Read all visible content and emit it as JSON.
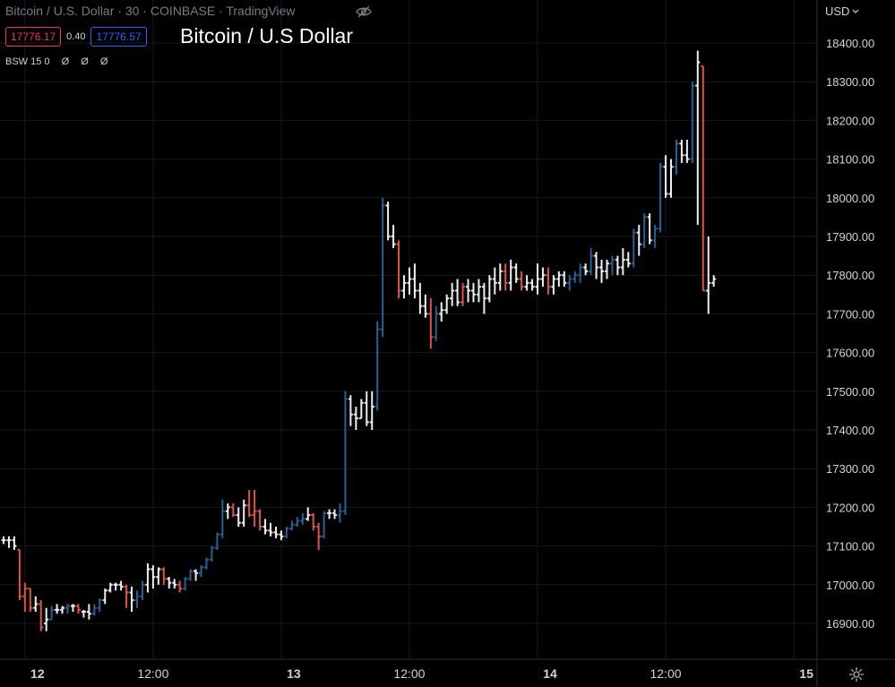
{
  "header": {
    "symbol_line": "Bitcoin / U.S. Dollar · 30 · COINBASE · TradingView",
    "bid": "17776.17",
    "spread": "0.40",
    "ask": "17776.57",
    "big_title": "Bitcoin / U.S Dollar",
    "indicator_name": "BSW 15 0",
    "indicator_values": [
      "Ø",
      "Ø",
      "Ø"
    ],
    "currency": "USD",
    "icons": {
      "visibility": "eye-off-icon",
      "dropdown": "chevron-down-icon",
      "settings": "gear-icon"
    }
  },
  "colors": {
    "background": "#000000",
    "up_bar": "#2a5f93",
    "down_bar": "#e0524a",
    "neutral_bar": "#eeeeee",
    "grid": "#161a22",
    "axis_text": "#d1d4dc"
  },
  "chart_data": {
    "type": "ohlc",
    "interval": "30",
    "ylim": [
      16820,
      18500
    ],
    "y_ticks": [
      16900,
      17000,
      17100,
      17200,
      17300,
      17400,
      17500,
      17600,
      17700,
      17800,
      17900,
      18000,
      18100,
      18200,
      18300,
      18400
    ],
    "y_tick_labels": [
      "16900.00",
      "17000.00",
      "17100.00",
      "17200.00",
      "17300.00",
      "17400.00",
      "17500.00",
      "17600.00",
      "17700.00",
      "17800.00",
      "17900.00",
      "18000.00",
      "18100.00",
      "18200.00",
      "18300.00",
      "18400.00"
    ],
    "x_ticks": [
      {
        "label": "12",
        "bar": 4
      },
      {
        "label": "12:00",
        "bar": 28
      },
      {
        "label": "13",
        "bar": 52
      },
      {
        "label": "12:00",
        "bar": 76
      },
      {
        "label": "14",
        "bar": 100
      },
      {
        "label": "12:00",
        "bar": 124
      },
      {
        "label": "15",
        "bar": 148
      }
    ],
    "bars": [
      [
        17115,
        17125,
        17105,
        17115,
        "n"
      ],
      [
        17115,
        17125,
        17095,
        17115,
        "n"
      ],
      [
        17115,
        17125,
        17090,
        17100,
        "n"
      ],
      [
        17090,
        17090,
        16960,
        16970,
        "d"
      ],
      [
        16970,
        17005,
        16930,
        16990,
        "d"
      ],
      [
        16990,
        16990,
        16930,
        16940,
        "d"
      ],
      [
        16940,
        16970,
        16930,
        16950,
        "n"
      ],
      [
        16950,
        16960,
        16880,
        16890,
        "d"
      ],
      [
        16900,
        16940,
        16880,
        16910,
        "n"
      ],
      [
        16910,
        16945,
        16910,
        16935,
        "u"
      ],
      [
        16935,
        16950,
        16925,
        16935,
        "n"
      ],
      [
        16935,
        16945,
        16925,
        16940,
        "n"
      ],
      [
        16940,
        16950,
        16925,
        16945,
        "u"
      ],
      [
        16945,
        16950,
        16930,
        16945,
        "n"
      ],
      [
        16945,
        16950,
        16925,
        16935,
        "d"
      ],
      [
        16930,
        16935,
        16915,
        16930,
        "n"
      ],
      [
        16930,
        16950,
        16910,
        16925,
        "n"
      ],
      [
        16925,
        16950,
        16920,
        16940,
        "u"
      ],
      [
        16940,
        16965,
        16930,
        16960,
        "u"
      ],
      [
        16960,
        16990,
        16950,
        16985,
        "n"
      ],
      [
        16985,
        17005,
        16980,
        17000,
        "n"
      ],
      [
        17000,
        17005,
        16985,
        17000,
        "n"
      ],
      [
        17000,
        17010,
        16985,
        16995,
        "n"
      ],
      [
        16995,
        17000,
        16940,
        16980,
        "d"
      ],
      [
        16980,
        16995,
        16930,
        16960,
        "n"
      ],
      [
        16960,
        16985,
        16940,
        16970,
        "u"
      ],
      [
        16970,
        17010,
        16960,
        17000,
        "u"
      ],
      [
        17000,
        17055,
        16980,
        17040,
        "n"
      ],
      [
        17040,
        17050,
        16990,
        17020,
        "n"
      ],
      [
        17020,
        17045,
        17000,
        17040,
        "n"
      ],
      [
        17040,
        17045,
        17000,
        17015,
        "d"
      ],
      [
        17015,
        17020,
        16990,
        17005,
        "n"
      ],
      [
        17005,
        17015,
        16990,
        17000,
        "n"
      ],
      [
        17000,
        17010,
        16980,
        16990,
        "d"
      ],
      [
        16990,
        17020,
        16985,
        17015,
        "u"
      ],
      [
        17015,
        17040,
        17010,
        17035,
        "u"
      ],
      [
        17035,
        17040,
        17010,
        17030,
        "n"
      ],
      [
        17030,
        17050,
        17020,
        17045,
        "u"
      ],
      [
        17045,
        17070,
        17040,
        17065,
        "u"
      ],
      [
        17065,
        17100,
        17060,
        17095,
        "u"
      ],
      [
        17095,
        17135,
        17090,
        17130,
        "u"
      ],
      [
        17130,
        17220,
        17120,
        17190,
        "u"
      ],
      [
        17190,
        17210,
        17170,
        17200,
        "n"
      ],
      [
        17200,
        17210,
        17175,
        17180,
        "d"
      ],
      [
        17180,
        17200,
        17150,
        17160,
        "n"
      ],
      [
        17160,
        17220,
        17150,
        17205,
        "n"
      ],
      [
        17205,
        17245,
        17175,
        17180,
        "d"
      ],
      [
        17180,
        17245,
        17150,
        17190,
        "d"
      ],
      [
        17190,
        17195,
        17140,
        17150,
        "d"
      ],
      [
        17150,
        17170,
        17130,
        17140,
        "n"
      ],
      [
        17140,
        17160,
        17125,
        17135,
        "n"
      ],
      [
        17135,
        17150,
        17120,
        17130,
        "n"
      ],
      [
        17130,
        17140,
        17115,
        17125,
        "n"
      ],
      [
        17125,
        17150,
        17120,
        17145,
        "u"
      ],
      [
        17145,
        17165,
        17140,
        17155,
        "u"
      ],
      [
        17155,
        17175,
        17150,
        17165,
        "u"
      ],
      [
        17165,
        17185,
        17155,
        17170,
        "u"
      ],
      [
        17170,
        17200,
        17165,
        17180,
        "n"
      ],
      [
        17180,
        17185,
        17140,
        17150,
        "d"
      ],
      [
        17150,
        17160,
        17090,
        17125,
        "d"
      ],
      [
        17125,
        17190,
        17120,
        17185,
        "u"
      ],
      [
        17185,
        17195,
        17170,
        17185,
        "n"
      ],
      [
        17185,
        17195,
        17170,
        17180,
        "n"
      ],
      [
        17180,
        17210,
        17160,
        17190,
        "u"
      ],
      [
        17190,
        17500,
        17180,
        17480,
        "u"
      ],
      [
        17480,
        17490,
        17410,
        17440,
        "n"
      ],
      [
        17440,
        17460,
        17400,
        17430,
        "n"
      ],
      [
        17430,
        17480,
        17430,
        17470,
        "n"
      ],
      [
        17470,
        17500,
        17410,
        17420,
        "n"
      ],
      [
        17420,
        17500,
        17400,
        17460,
        "n"
      ],
      [
        17460,
        17680,
        17450,
        17660,
        "u"
      ],
      [
        17660,
        18000,
        17640,
        17980,
        "u"
      ],
      [
        17980,
        17990,
        17890,
        17900,
        "n"
      ],
      [
        17900,
        17930,
        17870,
        17880,
        "n"
      ],
      [
        17880,
        17890,
        17740,
        17760,
        "d"
      ],
      [
        17760,
        17800,
        17740,
        17780,
        "n"
      ],
      [
        17780,
        17820,
        17750,
        17790,
        "n"
      ],
      [
        17790,
        17830,
        17740,
        17760,
        "n"
      ],
      [
        17760,
        17780,
        17700,
        17720,
        "n"
      ],
      [
        17720,
        17750,
        17690,
        17700,
        "n"
      ],
      [
        17700,
        17740,
        17610,
        17640,
        "d"
      ],
      [
        17640,
        17720,
        17630,
        17700,
        "u"
      ],
      [
        17700,
        17730,
        17680,
        17710,
        "n"
      ],
      [
        17710,
        17750,
        17700,
        17740,
        "n"
      ],
      [
        17740,
        17780,
        17720,
        17760,
        "n"
      ],
      [
        17760,
        17790,
        17720,
        17730,
        "n"
      ],
      [
        17730,
        17780,
        17720,
        17770,
        "d"
      ],
      [
        17770,
        17790,
        17730,
        17760,
        "n"
      ],
      [
        17760,
        17780,
        17730,
        17750,
        "n"
      ],
      [
        17750,
        17790,
        17730,
        17770,
        "n"
      ],
      [
        17770,
        17780,
        17700,
        17740,
        "n"
      ],
      [
        17740,
        17800,
        17730,
        17790,
        "n"
      ],
      [
        17790,
        17820,
        17750,
        17780,
        "n"
      ],
      [
        17780,
        17830,
        17760,
        17810,
        "n"
      ],
      [
        17810,
        17830,
        17760,
        17780,
        "d"
      ],
      [
        17780,
        17840,
        17760,
        17820,
        "n"
      ],
      [
        17820,
        17830,
        17780,
        17790,
        "n"
      ],
      [
        17790,
        17810,
        17760,
        17770,
        "d"
      ],
      [
        17770,
        17800,
        17760,
        17780,
        "n"
      ],
      [
        17780,
        17790,
        17760,
        17770,
        "n"
      ],
      [
        17770,
        17830,
        17750,
        17790,
        "n"
      ],
      [
        17790,
        17820,
        17770,
        17800,
        "n"
      ],
      [
        17800,
        17820,
        17750,
        17770,
        "d"
      ],
      [
        17770,
        17800,
        17750,
        17790,
        "n"
      ],
      [
        17790,
        17810,
        17770,
        17800,
        "n"
      ],
      [
        17800,
        17810,
        17770,
        17780,
        "n"
      ],
      [
        17780,
        17800,
        17760,
        17790,
        "u"
      ],
      [
        17790,
        17810,
        17780,
        17800,
        "u"
      ],
      [
        17800,
        17830,
        17780,
        17820,
        "u"
      ],
      [
        17820,
        17830,
        17800,
        17810,
        "n"
      ],
      [
        17810,
        17870,
        17800,
        17850,
        "u"
      ],
      [
        17850,
        17860,
        17790,
        17820,
        "n"
      ],
      [
        17820,
        17840,
        17780,
        17810,
        "n"
      ],
      [
        17810,
        17840,
        17790,
        17830,
        "n"
      ],
      [
        17830,
        17850,
        17800,
        17840,
        "u"
      ],
      [
        17840,
        17850,
        17800,
        17820,
        "n"
      ],
      [
        17820,
        17870,
        17800,
        17840,
        "n"
      ],
      [
        17840,
        17860,
        17820,
        17830,
        "n"
      ],
      [
        17830,
        17920,
        17820,
        17910,
        "u"
      ],
      [
        17910,
        17930,
        17850,
        17880,
        "n"
      ],
      [
        17880,
        17960,
        17870,
        17950,
        "u"
      ],
      [
        17950,
        17960,
        17880,
        17890,
        "n"
      ],
      [
        17890,
        17930,
        17870,
        17920,
        "u"
      ],
      [
        17920,
        18090,
        17910,
        18080,
        "u"
      ],
      [
        18080,
        18110,
        18000,
        18010,
        "n"
      ],
      [
        18010,
        18100,
        18000,
        18080,
        "n"
      ],
      [
        18080,
        18150,
        18060,
        18140,
        "u"
      ],
      [
        18140,
        18150,
        18090,
        18110,
        "n"
      ],
      [
        18110,
        18150,
        18090,
        18100,
        "n"
      ],
      [
        18100,
        18300,
        18090,
        18290,
        "u"
      ],
      [
        18290,
        18380,
        17930,
        18350,
        "n"
      ],
      [
        18340,
        18340,
        17760,
        17760,
        "d"
      ],
      [
        17760,
        17900,
        17700,
        17780,
        "n"
      ],
      [
        17780,
        17800,
        17770,
        17790,
        "n"
      ]
    ]
  }
}
